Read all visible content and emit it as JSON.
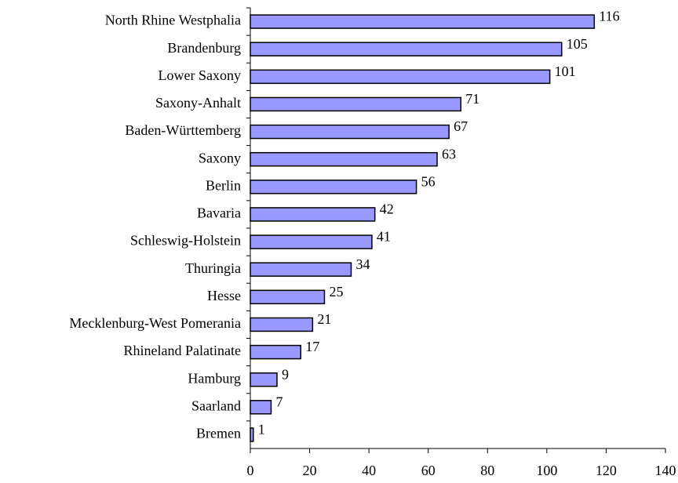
{
  "chart_data": {
    "type": "bar",
    "orientation": "horizontal",
    "categories": [
      "North Rhine Westphalia",
      "Brandenburg",
      "Lower Saxony",
      "Saxony-Anhalt",
      "Baden-Württemberg",
      "Saxony",
      "Berlin",
      "Bavaria",
      "Schleswig-Holstein",
      "Thuringia",
      "Hesse",
      "Mecklenburg-West Pomerania",
      "Rhineland Palatinate",
      "Hamburg",
      "Saarland",
      "Bremen"
    ],
    "values": [
      116,
      105,
      101,
      71,
      67,
      63,
      56,
      42,
      41,
      34,
      25,
      21,
      17,
      9,
      7,
      1
    ],
    "color": "#9999ff",
    "xlim": [
      0,
      140
    ],
    "xticks": [
      0,
      20,
      40,
      60,
      80,
      100,
      120,
      140
    ],
    "grid": false
  }
}
